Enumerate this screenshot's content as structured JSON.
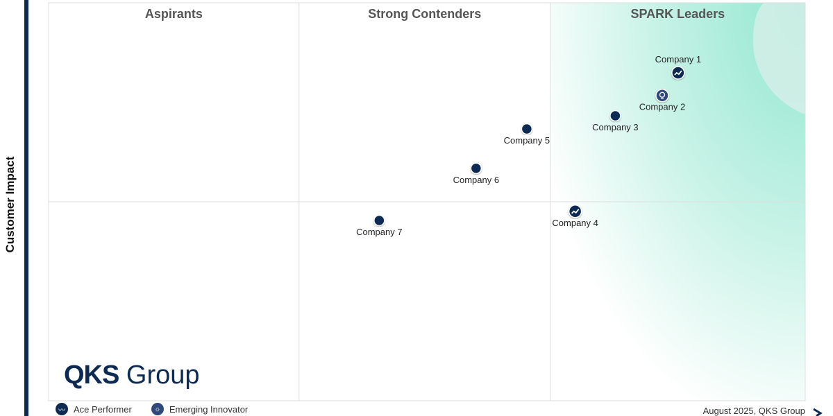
{
  "colors": {
    "marker": "#0d2a52",
    "innovator": "#2f4a7a",
    "leader_bg": "#aeeedd",
    "accent": "#0d2a52"
  },
  "chart_data": {
    "type": "scatter",
    "title": "",
    "ylabel": "Customer Impact",
    "xlabel": "",
    "xlim": [
      0,
      100
    ],
    "ylim": [
      0,
      100
    ],
    "quadrant_dividers": {
      "x": [
        33.1,
        66.3
      ],
      "y": [
        50
      ]
    },
    "quadrant_titles": [
      "Aspirants",
      "Strong Contenders",
      "SPARK Leaders"
    ],
    "points": [
      {
        "name": "Company 1",
        "x": 83.2,
        "y": 82.4,
        "category": "Ace Performer",
        "label_side": "above"
      },
      {
        "name": "Company 2",
        "x": 81.1,
        "y": 76.7,
        "category": "Emerging Innovator",
        "label_side": "below"
      },
      {
        "name": "Company 3",
        "x": 74.9,
        "y": 71.6,
        "category": "",
        "label_side": "below"
      },
      {
        "name": "Company 4",
        "x": 69.6,
        "y": 47.6,
        "category": "Ace Performer",
        "label_side": "below"
      },
      {
        "name": "Company 5",
        "x": 63.2,
        "y": 68.3,
        "category": "",
        "label_side": "below"
      },
      {
        "name": "Company 6",
        "x": 56.5,
        "y": 58.4,
        "category": "",
        "label_side": "below"
      },
      {
        "name": "Company 7",
        "x": 43.7,
        "y": 45.3,
        "category": "",
        "label_side": "below"
      }
    ],
    "legend": [
      {
        "label": "Ace Performer",
        "icon": "trend-line-icon"
      },
      {
        "label": "Emerging Innovator",
        "icon": "lightbulb-icon"
      }
    ],
    "legend_position": "bottom-left"
  },
  "logo": {
    "bold": "QKS",
    "light": "Group"
  },
  "footer": "August  2025, QKS Group"
}
